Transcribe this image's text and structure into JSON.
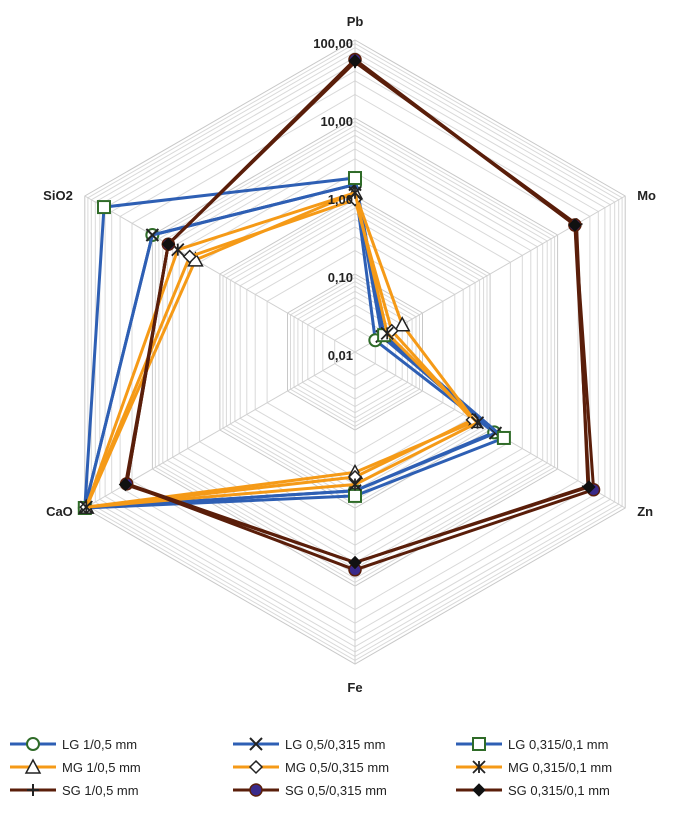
{
  "chart_data": {
    "type": "radar",
    "scale": "log",
    "rlim": [
      0.01,
      100
    ],
    "axes": [
      "Pb",
      "Mo",
      "Zn",
      "Fe",
      "CaO",
      "SiO2"
    ],
    "ticks": [
      "0,01",
      "0,10",
      "1,00",
      "10,00",
      "100,00"
    ],
    "tick_values": [
      0.01,
      0.1,
      1,
      10,
      100
    ],
    "grid": true,
    "legend_position": "bottom",
    "series": [
      {
        "name": "LG 1/0,5 mm",
        "color": "#2e5fb4",
        "marker": "circle",
        "values": [
          1.4,
          0.02,
          1.15,
          0.6,
          100,
          10
        ]
      },
      {
        "name": "LG 0,5/0,315 mm",
        "color": "#2e5fb4",
        "marker": "x",
        "values": [
          1.4,
          0.025,
          1.2,
          0.6,
          100,
          10
        ]
      },
      {
        "name": "LG 0,315/0,1 mm",
        "color": "#2e5fb4",
        "marker": "square",
        "values": [
          1.7,
          0.027,
          1.6,
          0.7,
          100,
          52
        ]
      },
      {
        "name": "MG 1/0,5 mm",
        "color": "#f59a17",
        "marker": "triangle",
        "values": [
          1.1,
          0.05,
          0.6,
          0.35,
          95,
          2.3
        ]
      },
      {
        "name": "MG 0,5/0,315 mm",
        "color": "#f59a17",
        "marker": "diamond",
        "values": [
          0.9,
          0.035,
          0.55,
          0.4,
          95,
          2.8
        ]
      },
      {
        "name": "MG 0,315/0,1 mm",
        "color": "#f59a17",
        "marker": "asterisk",
        "values": [
          1.1,
          0.03,
          0.65,
          0.5,
          95,
          4.2
        ]
      },
      {
        "name": "SG 1/0,5 mm",
        "color": "#5a1e0a",
        "marker": "plus",
        "values": [
          52,
          19,
          28,
          5,
          24,
          5.8
        ]
      },
      {
        "name": "SG 0,5/0,315 mm",
        "color": "#5a1e0a",
        "marker": "filled-circle",
        "values": [
          56,
          18,
          34,
          6.2,
          24,
          5.8
        ]
      },
      {
        "name": "SG 0,315/0,1 mm",
        "color": "#5a1e0a",
        "marker": "filled-diamond",
        "values": [
          54,
          18,
          29,
          5.0,
          25,
          5.8
        ]
      }
    ]
  }
}
